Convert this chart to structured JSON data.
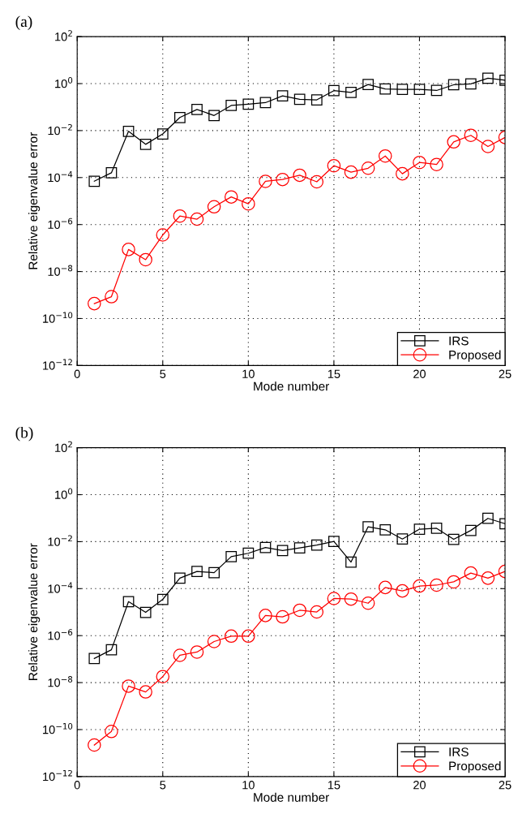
{
  "chart_data": [
    {
      "type": "line",
      "title": "(a)",
      "xlabel": "Mode number",
      "ylabel": "Relative eigenvalue error",
      "log": "y",
      "grid": true,
      "legend": "bottom right",
      "x": [
        1,
        2,
        3,
        4,
        5,
        6,
        7,
        8,
        9,
        10,
        11,
        12,
        13,
        14,
        15,
        16,
        17,
        18,
        19,
        20,
        21,
        22,
        23,
        24,
        25
      ],
      "xlim": [
        0,
        25
      ],
      "xticks": [
        0,
        5,
        10,
        15,
        20,
        25
      ],
      "ylim": [
        1e-12,
        100
      ],
      "yticks": [
        {
          "value": 1e-12,
          "label": "10$^{−12}$"
        },
        {
          "value": 1e-10,
          "label": "10$^{−10}$"
        },
        {
          "value": 1e-08,
          "label": "10$^{−8}$"
        },
        {
          "value": 1e-06,
          "label": "10$^{−6}$"
        },
        {
          "value": 0.0001,
          "label": "10$^{−4}$"
        },
        {
          "value": 0.01,
          "label": "10$^{−2}$"
        },
        {
          "value": 1,
          "label": "10$^{0}$"
        },
        {
          "value": 100,
          "label": "10$^{2}$"
        }
      ],
      "series": [
        {
          "name": "IRS",
          "color": "#000000",
          "marker": "square",
          "values": [
            7e-05,
            0.00016,
            0.0093,
            0.0026,
            0.0072,
            0.036,
            0.079,
            0.044,
            0.117,
            0.134,
            0.155,
            0.3,
            0.215,
            0.204,
            0.5,
            0.42,
            0.92,
            0.59,
            0.57,
            0.57,
            0.51,
            0.89,
            0.97,
            1.7,
            1.4
          ]
        },
        {
          "name": "Proposed",
          "color": "#ff0000",
          "marker": "circle",
          "values": [
            4.3e-10,
            8.5e-10,
            8.7e-08,
            3.2e-08,
            3.6e-07,
            2.3e-06,
            1.7e-06,
            5.7e-06,
            1.5e-05,
            7.6e-06,
            6.9e-05,
            8.3e-05,
            0.000126,
            6.6e-05,
            0.00032,
            0.00017,
            0.00025,
            0.00083,
            0.000145,
            0.00044,
            0.00036,
            0.0033,
            0.0063,
            0.0021,
            0.0051
          ]
        }
      ]
    },
    {
      "type": "line",
      "title": "(b)",
      "xlabel": "Mode number",
      "ylabel": "Relative eigenvalue error",
      "log": "y",
      "grid": true,
      "legend": "bottom right",
      "x": [
        1,
        2,
        3,
        4,
        5,
        6,
        7,
        8,
        9,
        10,
        11,
        12,
        13,
        14,
        15,
        16,
        17,
        18,
        19,
        20,
        21,
        22,
        23,
        24,
        25
      ],
      "xlim": [
        0,
        25
      ],
      "xticks": [
        0,
        5,
        10,
        15,
        20,
        25
      ],
      "ylim": [
        1e-12,
        100
      ],
      "yticks": [
        {
          "value": 1e-12,
          "label": "10$^{−12}$"
        },
        {
          "value": 1e-10,
          "label": "10$^{−10}$"
        },
        {
          "value": 1e-08,
          "label": "10$^{−8}$"
        },
        {
          "value": 1e-06,
          "label": "10$^{−6}$"
        },
        {
          "value": 0.0001,
          "label": "10$^{−4}$"
        },
        {
          "value": 0.01,
          "label": "10$^{−2}$"
        },
        {
          "value": 1,
          "label": "10$^{0}$"
        },
        {
          "value": 100,
          "label": "10$^{2}$"
        }
      ],
      "series": [
        {
          "name": "IRS",
          "color": "#000000",
          "marker": "square",
          "values": [
            1.07e-07,
            2.5e-07,
            2.8e-05,
            9.8e-06,
            3.5e-05,
            0.00028,
            0.00054,
            0.00048,
            0.0023,
            0.0032,
            0.0056,
            0.0042,
            0.0054,
            0.0071,
            0.0103,
            0.00135,
            0.043,
            0.032,
            0.0129,
            0.034,
            0.037,
            0.0126,
            0.03,
            0.098,
            0.058
          ]
        },
        {
          "name": "Proposed",
          "color": "#ff0000",
          "marker": "circle",
          "values": [
            2.2e-11,
            8.3e-11,
            7.1e-09,
            4e-09,
            1.8e-08,
            1.45e-07,
            2e-07,
            5.6e-07,
            9.5e-07,
            9.5e-07,
            7.2e-06,
            6.3e-06,
            1.2e-05,
            1.02e-05,
            3.8e-05,
            3.6e-05,
            2.4e-05,
            0.000112,
            8e-05,
            0.000129,
            0.000141,
            0.000195,
            0.00046,
            0.00028,
            0.00054
          ]
        }
      ]
    }
  ]
}
